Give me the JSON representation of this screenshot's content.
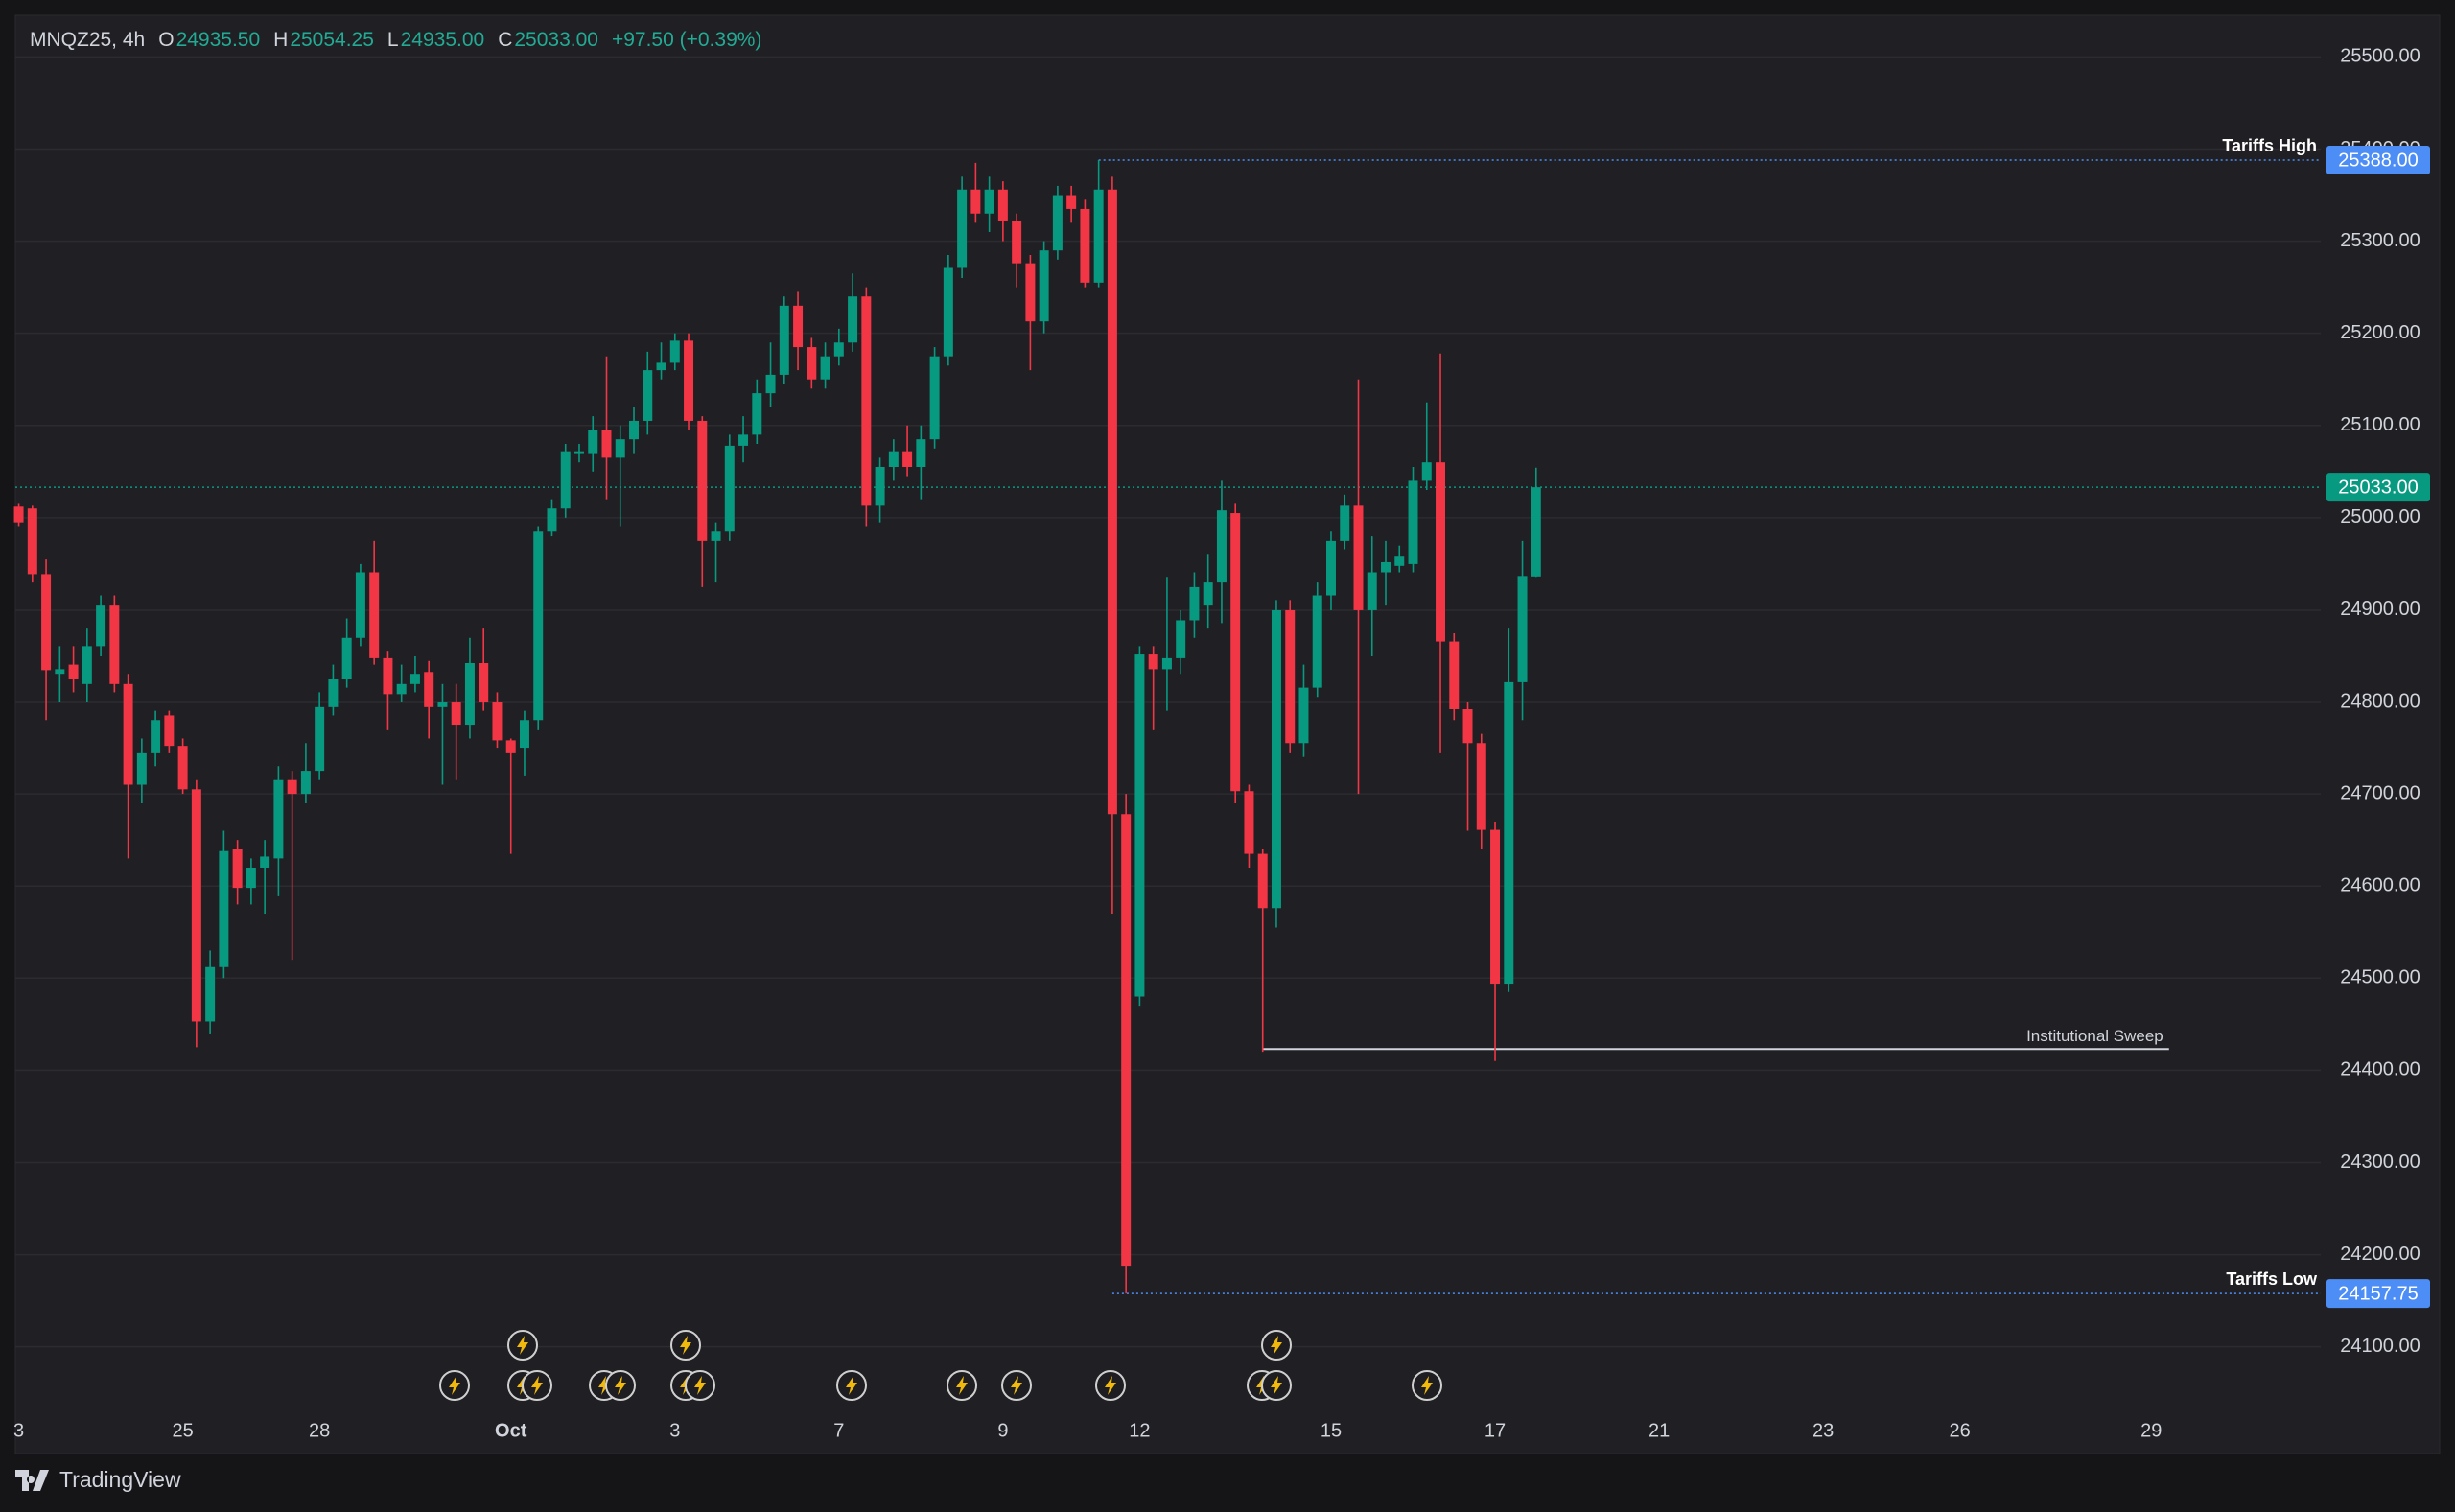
{
  "chart_data": {
    "type": "candlestick",
    "title": "MNQZ25, 4h",
    "ohlc_legend": [
      {
        "key": "O",
        "text": "24935.50"
      },
      {
        "key": "H",
        "text": "25054.25"
      },
      {
        "key": "L",
        "text": "24935.00"
      },
      {
        "key": "C",
        "text": "25033.00"
      }
    ],
    "change": "+97.50 (+0.39%)",
    "up_color": "#089981",
    "down_color": "#f23645",
    "open": [
      25012,
      25010,
      24938,
      24830,
      24840,
      24820,
      24860,
      24905,
      24820,
      24710,
      24745,
      24785,
      24752,
      24705,
      24453,
      24512,
      24640,
      24598,
      24620,
      24630,
      24715,
      24700,
      24725,
      24795,
      24825,
      24870,
      24940,
      24848,
      24808,
      24820,
      24832,
      24795,
      24800,
      24775,
      24842,
      24800,
      24758,
      24750,
      24780,
      24985,
      25010,
      25070,
      25070,
      25095,
      25065,
      25085,
      25105,
      25160,
      25168,
      25192,
      25105,
      24975,
      24985,
      25078,
      25090,
      25135,
      25155,
      25230,
      25185,
      25150,
      25175,
      25190,
      25240,
      25013,
      25055,
      25072,
      25055,
      25085,
      25175,
      25272,
      25356,
      25330,
      25356,
      25322,
      25276,
      25213,
      25290,
      25350,
      25335,
      25255,
      25356,
      24678,
      24480,
      24852,
      24835,
      24848,
      24888,
      24905,
      24930,
      25005,
      24703,
      24635,
      24576,
      24900,
      24755,
      24815,
      24915,
      24975,
      25013,
      24900,
      24940,
      24948,
      24950,
      25040,
      25060,
      24865,
      24792,
      24755,
      24661,
      24494,
      24822,
      24935.5
    ],
    "high": [
      25015,
      25013,
      24955,
      24860,
      24860,
      24880,
      24915,
      24915,
      24830,
      24760,
      24790,
      24790,
      24760,
      24715,
      24530,
      24660,
      24650,
      24630,
      24650,
      24730,
      24725,
      24755,
      24810,
      24840,
      24890,
      24950,
      24975,
      24855,
      24840,
      24850,
      24845,
      24820,
      24820,
      24870,
      24880,
      24810,
      24760,
      24790,
      24990,
      25020,
      25080,
      25080,
      25110,
      25175,
      25100,
      25120,
      25180,
      25190,
      25200,
      25200,
      25110,
      24995,
      25090,
      25110,
      25150,
      25190,
      25240,
      25245,
      25195,
      25190,
      25205,
      25265,
      25250,
      25065,
      25085,
      25100,
      25100,
      25185,
      25285,
      25370,
      25385,
      25370,
      25365,
      25330,
      25285,
      25300,
      25360,
      25360,
      25345,
      25388,
      25370,
      24700,
      24860,
      24860,
      24935,
      24900,
      24940,
      24960,
      25040,
      25015,
      24710,
      24640,
      24910,
      24910,
      24840,
      24930,
      24985,
      25025,
      25150,
      24980,
      24975,
      24970,
      25055,
      25125,
      25178,
      24875,
      24800,
      24765,
      24670,
      24880,
      24975,
      25054.25
    ],
    "low": [
      24990,
      24930,
      24780,
      24800,
      24810,
      24800,
      24850,
      24810,
      24630,
      24690,
      24730,
      24745,
      24700,
      24425,
      24440,
      24500,
      24580,
      24580,
      24570,
      24590,
      24520,
      24690,
      24715,
      24785,
      24815,
      24860,
      24840,
      24770,
      24800,
      24810,
      24760,
      24710,
      24715,
      24760,
      24790,
      24750,
      24635,
      24720,
      24770,
      24980,
      25000,
      25060,
      25050,
      25020,
      24990,
      25070,
      25090,
      25150,
      25160,
      25095,
      24925,
      24930,
      24975,
      25060,
      25080,
      25120,
      25145,
      25160,
      25140,
      25140,
      25165,
      25180,
      24990,
      24995,
      25040,
      25045,
      25020,
      25075,
      25165,
      25260,
      25320,
      25310,
      25300,
      25250,
      25160,
      25200,
      25280,
      25320,
      25250,
      25250,
      24570,
      24157.75,
      24470,
      24770,
      24790,
      24830,
      24870,
      24880,
      24885,
      24690,
      24620,
      24420,
      24555,
      24745,
      24740,
      24805,
      24900,
      24965,
      24700,
      24850,
      24905,
      24940,
      24940,
      25030,
      24745,
      24780,
      24660,
      24640,
      24410,
      24485,
      24780,
      24935
    ],
    "close": [
      24995,
      24938,
      24834,
      24835,
      24825,
      24860,
      24905,
      24820,
      24710,
      24745,
      24780,
      24752,
      24705,
      24453,
      24512,
      24638,
      24598,
      24620,
      24632,
      24715,
      24700,
      24725,
      24795,
      24825,
      24870,
      24940,
      24848,
      24808,
      24820,
      24830,
      24795,
      24800,
      24775,
      24842,
      24800,
      24758,
      24745,
      24780,
      24985,
      25010,
      25072,
      25072,
      25095,
      25065,
      25085,
      25105,
      25160,
      25168,
      25192,
      25105,
      24975,
      24985,
      25078,
      25090,
      25135,
      25155,
      25230,
      25185,
      25150,
      25175,
      25190,
      25240,
      25013,
      25055,
      25072,
      25055,
      25085,
      25175,
      25272,
      25356,
      25330,
      25356,
      25322,
      25276,
      25213,
      25290,
      25350,
      25335,
      25255,
      25356,
      24678,
      24188,
      24852,
      24835,
      24848,
      24888,
      24925,
      24930,
      25008,
      24703,
      24635,
      24576,
      24900,
      24755,
      24815,
      24915,
      24975,
      25013,
      24900,
      24940,
      24952,
      24958,
      25040,
      25060,
      24865,
      24792,
      24755,
      24661,
      24494,
      24822,
      24936,
      25033
    ],
    "xlim": [
      -0.25,
      168.4
    ],
    "xticks": [
      {
        "value": 0,
        "label": "3"
      },
      {
        "value": 12,
        "label": "25"
      },
      {
        "value": 22,
        "label": "28"
      },
      {
        "value": 36,
        "label": "Oct"
      },
      {
        "value": 48,
        "label": "3"
      },
      {
        "value": 60,
        "label": "7"
      },
      {
        "value": 72,
        "label": "9"
      },
      {
        "value": 82,
        "label": "12"
      },
      {
        "value": 96,
        "label": "15"
      },
      {
        "value": 108,
        "label": "17"
      },
      {
        "value": 120,
        "label": "21"
      },
      {
        "value": 132,
        "label": "23"
      },
      {
        "value": 142,
        "label": "26"
      },
      {
        "value": 156,
        "label": "29"
      }
    ],
    "ylim": [
      24032,
      25541
    ],
    "yticks": [
      {
        "value": 24100,
        "label": "24100.00"
      },
      {
        "value": 24200,
        "label": "24200.00"
      },
      {
        "value": 24300,
        "label": "24300.00"
      },
      {
        "value": 24400,
        "label": "24400.00"
      },
      {
        "value": 24500,
        "label": "24500.00"
      },
      {
        "value": 24600,
        "label": "24600.00"
      },
      {
        "value": 24700,
        "label": "24700.00"
      },
      {
        "value": 24800,
        "label": "24800.00"
      },
      {
        "value": 24900,
        "label": "24900.00"
      },
      {
        "value": 25000,
        "label": "25000.00"
      },
      {
        "value": 25100,
        "label": "25100.00"
      },
      {
        "value": 25200,
        "label": "25200.00"
      },
      {
        "value": 25300,
        "label": "25300.00"
      },
      {
        "value": 25400,
        "label": "25400.00"
      },
      {
        "value": 25500,
        "label": "25500.00"
      }
    ],
    "grid": true,
    "last_price": {
      "value": 25033,
      "label": "25033.00",
      "color": "#089981"
    },
    "annotations": [
      {
        "text": "Tariffs High",
        "value": 25388,
        "label": "25388.00",
        "color": "#4c8df6"
      },
      {
        "text": "Tariffs Low",
        "value": 24157.75,
        "label": "24157.75",
        "color": "#4c8df6"
      },
      {
        "text": "Institutional Sweep",
        "value": 24423,
        "color": "#d1d4dc"
      }
    ]
  },
  "brand": "TradingView"
}
